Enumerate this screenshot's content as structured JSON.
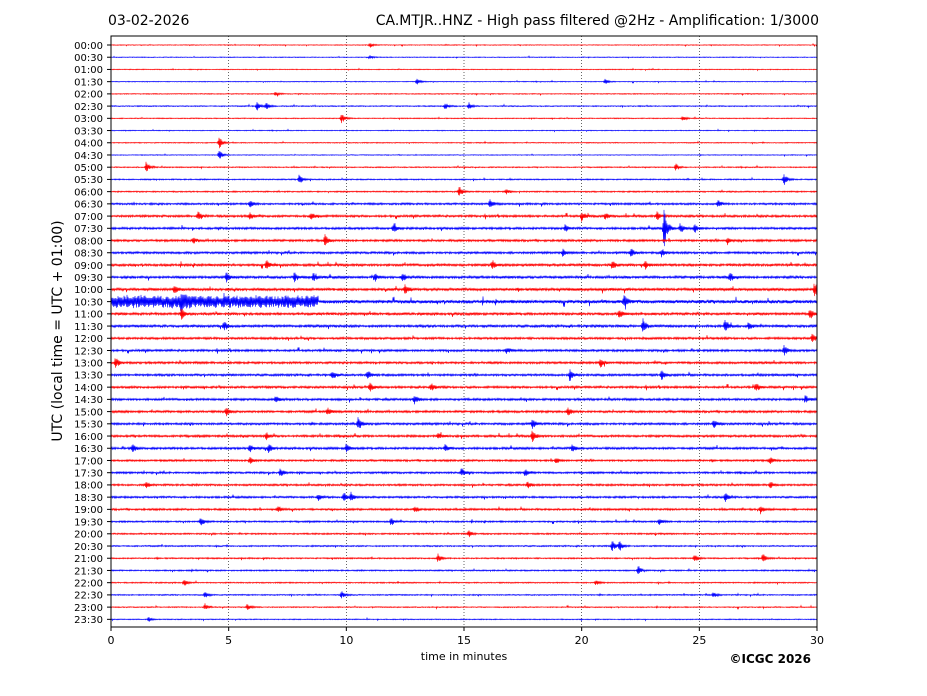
{
  "header": {
    "date": "03-02-2026",
    "title": "CA.MTJR..HNZ - High pass filtered @2Hz - Amplification: 1/3000"
  },
  "footer": {
    "copyright": "©ICGC 2026"
  },
  "chart_data": {
    "type": "line",
    "title": "CA.MTJR..HNZ - High pass filtered @2Hz - Amplification: 1/3000",
    "xlabel": "time in minutes",
    "ylabel": "UTC (local time = UTC + 01:00)",
    "xlim": [
      0,
      30
    ],
    "xticks": [
      0,
      5,
      10,
      15,
      20,
      25,
      30
    ],
    "grid": "vertical dotted at x ticks",
    "row_labels": [
      "00:00",
      "00:30",
      "01:00",
      "01:30",
      "02:00",
      "02:30",
      "03:00",
      "03:30",
      "04:00",
      "04:30",
      "05:00",
      "05:30",
      "06:00",
      "06:30",
      "07:00",
      "07:30",
      "08:00",
      "08:30",
      "09:00",
      "09:30",
      "10:00",
      "10:30",
      "11:00",
      "11:30",
      "12:00",
      "12:30",
      "13:00",
      "13:30",
      "14:00",
      "14:30",
      "15:00",
      "15:30",
      "16:00",
      "16:30",
      "17:00",
      "17:30",
      "18:00",
      "18:30",
      "19:00",
      "19:30",
      "20:00",
      "20:30",
      "21:00",
      "21:30",
      "22:00",
      "22:30",
      "23:00",
      "23:30"
    ],
    "row_colors": [
      "#ff0000",
      "#0000ff"
    ],
    "noise_level": [
      0.3,
      0.3,
      0.3,
      0.3,
      0.35,
      0.4,
      0.35,
      0.3,
      0.35,
      0.3,
      0.4,
      0.45,
      0.5,
      0.7,
      0.8,
      0.8,
      0.8,
      0.8,
      0.9,
      0.9,
      1.0,
      1.3,
      0.9,
      0.9,
      0.8,
      0.8,
      0.8,
      0.8,
      0.8,
      0.8,
      0.8,
      0.8,
      0.8,
      0.8,
      0.7,
      0.7,
      0.7,
      0.7,
      0.7,
      0.6,
      0.55,
      0.5,
      0.5,
      0.5,
      0.45,
      0.45,
      0.4,
      0.35
    ],
    "events": [
      {
        "row": 0,
        "x": 11.0,
        "amp": 3
      },
      {
        "row": 1,
        "x": 11.0,
        "amp": 2
      },
      {
        "row": 3,
        "x": 13.0,
        "amp": 3
      },
      {
        "row": 3,
        "x": 21.0,
        "amp": 3
      },
      {
        "row": 4,
        "x": 7.0,
        "amp": 3
      },
      {
        "row": 5,
        "x": 6.2,
        "amp": 5
      },
      {
        "row": 5,
        "x": 6.6,
        "amp": 4
      },
      {
        "row": 5,
        "x": 14.2,
        "amp": 4
      },
      {
        "row": 5,
        "x": 15.2,
        "amp": 4
      },
      {
        "row": 6,
        "x": 9.8,
        "amp": 6
      },
      {
        "row": 6,
        "x": 24.3,
        "amp": 3
      },
      {
        "row": 8,
        "x": 4.6,
        "amp": 6
      },
      {
        "row": 9,
        "x": 4.6,
        "amp": 6
      },
      {
        "row": 10,
        "x": 1.5,
        "amp": 6
      },
      {
        "row": 10,
        "x": 24.0,
        "amp": 4
      },
      {
        "row": 11,
        "x": 8.0,
        "amp": 6
      },
      {
        "row": 11,
        "x": 28.6,
        "amp": 6
      },
      {
        "row": 12,
        "x": 14.8,
        "amp": 6
      },
      {
        "row": 12,
        "x": 16.8,
        "amp": 3
      },
      {
        "row": 13,
        "x": 5.9,
        "amp": 4
      },
      {
        "row": 13,
        "x": 16.1,
        "amp": 5
      },
      {
        "row": 13,
        "x": 25.8,
        "amp": 4
      },
      {
        "row": 14,
        "x": 3.7,
        "amp": 5
      },
      {
        "row": 14,
        "x": 5.9,
        "amp": 4
      },
      {
        "row": 14,
        "x": 8.5,
        "amp": 4
      },
      {
        "row": 14,
        "x": 20.0,
        "amp": 6
      },
      {
        "row": 14,
        "x": 21.0,
        "amp": 4
      },
      {
        "row": 14,
        "x": 23.2,
        "amp": 5
      },
      {
        "row": 15,
        "x": 23.5,
        "amp": 22
      },
      {
        "row": 15,
        "x": 12.0,
        "amp": 5
      },
      {
        "row": 15,
        "x": 24.2,
        "amp": 5
      },
      {
        "row": 15,
        "x": 24.8,
        "amp": 5
      },
      {
        "row": 15,
        "x": 19.3,
        "amp": 4
      },
      {
        "row": 16,
        "x": 9.1,
        "amp": 6
      },
      {
        "row": 16,
        "x": 3.5,
        "amp": 4
      },
      {
        "row": 16,
        "x": 26.2,
        "amp": 4
      },
      {
        "row": 17,
        "x": 22.1,
        "amp": 5
      },
      {
        "row": 17,
        "x": 23.4,
        "amp": 5
      },
      {
        "row": 17,
        "x": 19.2,
        "amp": 4
      },
      {
        "row": 18,
        "x": 6.6,
        "amp": 5
      },
      {
        "row": 18,
        "x": 16.2,
        "amp": 5
      },
      {
        "row": 18,
        "x": 21.3,
        "amp": 5
      },
      {
        "row": 18,
        "x": 22.7,
        "amp": 4
      },
      {
        "row": 19,
        "x": 4.9,
        "amp": 5
      },
      {
        "row": 19,
        "x": 7.8,
        "amp": 5
      },
      {
        "row": 19,
        "x": 8.6,
        "amp": 5
      },
      {
        "row": 19,
        "x": 11.2,
        "amp": 5
      },
      {
        "row": 19,
        "x": 12.4,
        "amp": 5
      },
      {
        "row": 19,
        "x": 26.3,
        "amp": 5
      },
      {
        "row": 20,
        "x": 12.5,
        "amp": 6
      },
      {
        "row": 20,
        "x": 2.7,
        "amp": 5
      },
      {
        "row": 20,
        "x": 29.9,
        "amp": 8
      },
      {
        "row": 21,
        "x": 3.0,
        "amp": 9
      },
      {
        "row": 21,
        "x": 21.8,
        "amp": 6
      },
      {
        "row": 22,
        "x": 3.0,
        "amp": 6
      },
      {
        "row": 22,
        "x": 21.6,
        "amp": 6
      },
      {
        "row": 22,
        "x": 29.7,
        "amp": 6
      },
      {
        "row": 23,
        "x": 4.8,
        "amp": 6
      },
      {
        "row": 23,
        "x": 22.6,
        "amp": 8
      },
      {
        "row": 23,
        "x": 26.1,
        "amp": 7
      },
      {
        "row": 23,
        "x": 27.1,
        "amp": 5
      },
      {
        "row": 24,
        "x": 29.8,
        "amp": 6
      },
      {
        "row": 25,
        "x": 28.6,
        "amp": 6
      },
      {
        "row": 25,
        "x": 16.8,
        "amp": 4
      },
      {
        "row": 26,
        "x": 0.2,
        "amp": 6
      },
      {
        "row": 26,
        "x": 20.8,
        "amp": 5
      },
      {
        "row": 27,
        "x": 9.4,
        "amp": 5
      },
      {
        "row": 27,
        "x": 10.9,
        "amp": 6
      },
      {
        "row": 27,
        "x": 19.5,
        "amp": 7
      },
      {
        "row": 27,
        "x": 23.4,
        "amp": 6
      },
      {
        "row": 28,
        "x": 11.0,
        "amp": 6
      },
      {
        "row": 28,
        "x": 13.6,
        "amp": 5
      },
      {
        "row": 28,
        "x": 27.4,
        "amp": 5
      },
      {
        "row": 29,
        "x": 7.0,
        "amp": 4
      },
      {
        "row": 29,
        "x": 12.9,
        "amp": 5
      },
      {
        "row": 29,
        "x": 29.5,
        "amp": 4
      },
      {
        "row": 30,
        "x": 4.9,
        "amp": 5
      },
      {
        "row": 30,
        "x": 9.2,
        "amp": 5
      },
      {
        "row": 30,
        "x": 19.4,
        "amp": 5
      },
      {
        "row": 31,
        "x": 10.5,
        "amp": 7
      },
      {
        "row": 31,
        "x": 17.9,
        "amp": 6
      },
      {
        "row": 31,
        "x": 25.6,
        "amp": 5
      },
      {
        "row": 32,
        "x": 17.9,
        "amp": 7
      },
      {
        "row": 32,
        "x": 6.6,
        "amp": 4
      },
      {
        "row": 32,
        "x": 13.9,
        "amp": 4
      },
      {
        "row": 33,
        "x": 0.9,
        "amp": 5
      },
      {
        "row": 33,
        "x": 5.9,
        "amp": 5
      },
      {
        "row": 33,
        "x": 6.7,
        "amp": 5
      },
      {
        "row": 33,
        "x": 10.0,
        "amp": 5
      },
      {
        "row": 33,
        "x": 14.2,
        "amp": 4
      },
      {
        "row": 33,
        "x": 19.6,
        "amp": 5
      },
      {
        "row": 34,
        "x": 5.9,
        "amp": 4
      },
      {
        "row": 34,
        "x": 18.9,
        "amp": 4
      },
      {
        "row": 34,
        "x": 28.0,
        "amp": 4
      },
      {
        "row": 35,
        "x": 7.2,
        "amp": 5
      },
      {
        "row": 35,
        "x": 14.9,
        "amp": 5
      },
      {
        "row": 35,
        "x": 17.6,
        "amp": 4
      },
      {
        "row": 36,
        "x": 1.5,
        "amp": 4
      },
      {
        "row": 36,
        "x": 17.7,
        "amp": 4
      },
      {
        "row": 36,
        "x": 28.0,
        "amp": 4
      },
      {
        "row": 37,
        "x": 9.9,
        "amp": 5
      },
      {
        "row": 37,
        "x": 10.2,
        "amp": 5
      },
      {
        "row": 37,
        "x": 26.1,
        "amp": 5
      },
      {
        "row": 37,
        "x": 8.8,
        "amp": 4
      },
      {
        "row": 38,
        "x": 7.1,
        "amp": 4
      },
      {
        "row": 38,
        "x": 12.9,
        "amp": 4
      },
      {
        "row": 38,
        "x": 27.6,
        "amp": 4
      },
      {
        "row": 39,
        "x": 3.8,
        "amp": 5
      },
      {
        "row": 39,
        "x": 11.9,
        "amp": 5
      },
      {
        "row": 39,
        "x": 23.3,
        "amp": 4
      },
      {
        "row": 40,
        "x": 15.2,
        "amp": 4
      },
      {
        "row": 41,
        "x": 21.3,
        "amp": 6
      },
      {
        "row": 41,
        "x": 21.6,
        "amp": 6
      },
      {
        "row": 42,
        "x": 13.9,
        "amp": 5
      },
      {
        "row": 42,
        "x": 24.8,
        "amp": 4
      },
      {
        "row": 42,
        "x": 27.7,
        "amp": 5
      },
      {
        "row": 43,
        "x": 22.4,
        "amp": 5
      },
      {
        "row": 44,
        "x": 3.1,
        "amp": 4
      },
      {
        "row": 44,
        "x": 20.6,
        "amp": 3
      },
      {
        "row": 45,
        "x": 4.0,
        "amp": 4
      },
      {
        "row": 45,
        "x": 9.8,
        "amp": 4
      },
      {
        "row": 45,
        "x": 25.6,
        "amp": 3
      },
      {
        "row": 46,
        "x": 4.0,
        "amp": 4
      },
      {
        "row": 46,
        "x": 5.8,
        "amp": 4
      },
      {
        "row": 47,
        "x": 1.6,
        "amp": 3
      }
    ],
    "burst": {
      "row": 21,
      "x_start": 0.0,
      "x_end": 8.8,
      "amp": 5
    }
  }
}
